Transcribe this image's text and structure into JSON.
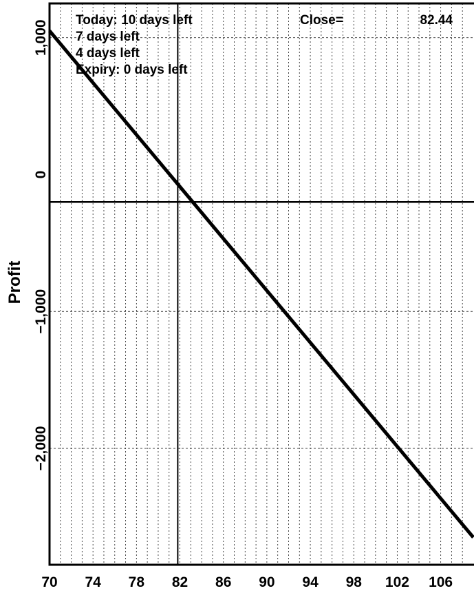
{
  "chart_data": {
    "type": "line",
    "xlabel": "",
    "ylabel": "Profit",
    "xlim": [
      70,
      109
    ],
    "ylim": [
      -2850,
      1250
    ],
    "x_ticks": [
      70,
      74,
      78,
      82,
      86,
      90,
      94,
      98,
      102,
      106
    ],
    "x_tick_labels": [
      "70",
      "74",
      "78",
      "82",
      "86",
      "90",
      "94",
      "98",
      "102",
      "106"
    ],
    "y_ticks": [
      1000,
      0,
      -1000,
      -2000
    ],
    "y_tick_labels": [
      "1,000",
      "0",
      "−1,000",
      "−2,000"
    ],
    "minor_x_step": 1,
    "grid": true,
    "legend": [
      "Today: 10 days left",
      "7 days left",
      "4 days left",
      "Expiry:  0 days left"
    ],
    "legend_position": "top-left",
    "close_label": "Close=",
    "close_value": "82.44",
    "close_x": 81.8,
    "zero_line_y": -200,
    "series": [
      {
        "color": "#000000",
        "x": [
          70,
          109
        ],
        "y": [
          1050,
          -2650
        ]
      }
    ]
  }
}
